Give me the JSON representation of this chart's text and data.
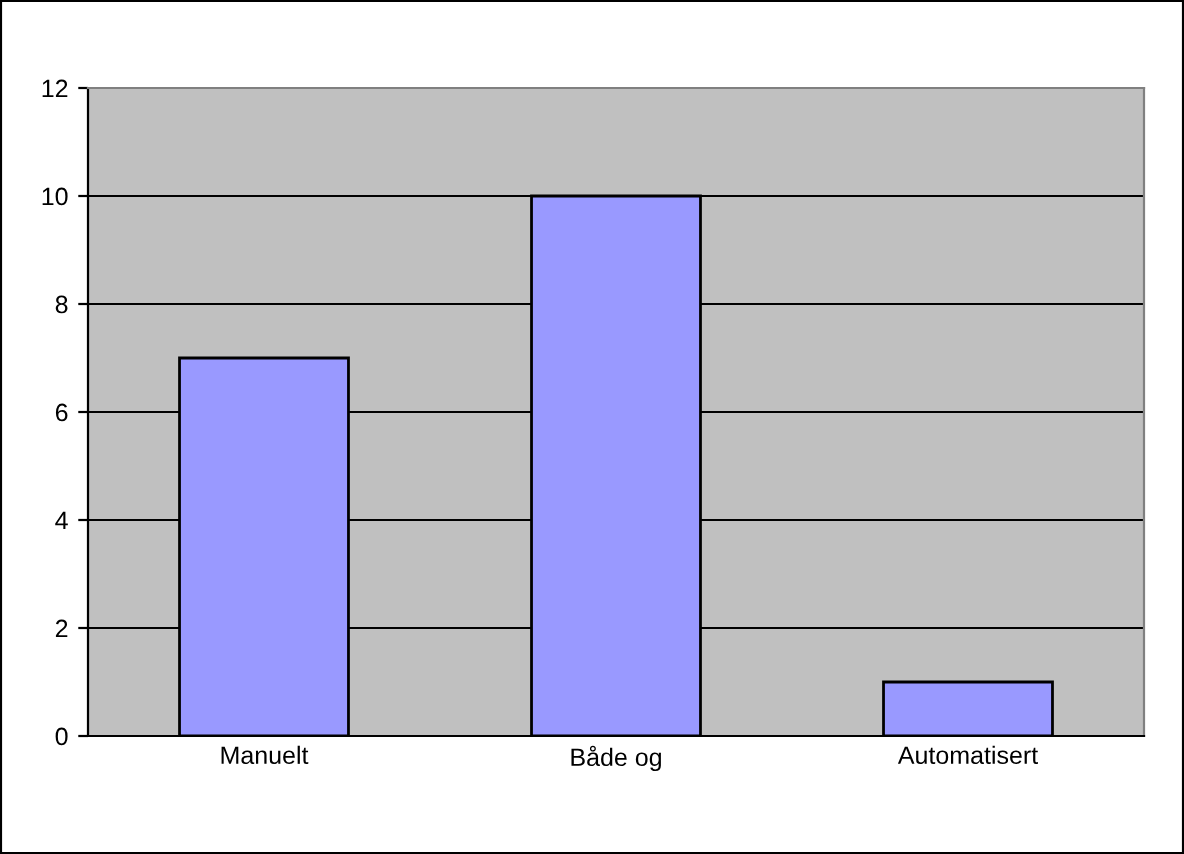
{
  "chart_data": {
    "type": "bar",
    "categories": [
      "Manuelt",
      "Både og",
      "Automatisert"
    ],
    "values": [
      7,
      10,
      1
    ],
    "color": "#9999ff",
    "ylim": [
      0,
      12
    ],
    "yticks": [
      0,
      2,
      4,
      6,
      8,
      10,
      12
    ],
    "grid": "y"
  }
}
